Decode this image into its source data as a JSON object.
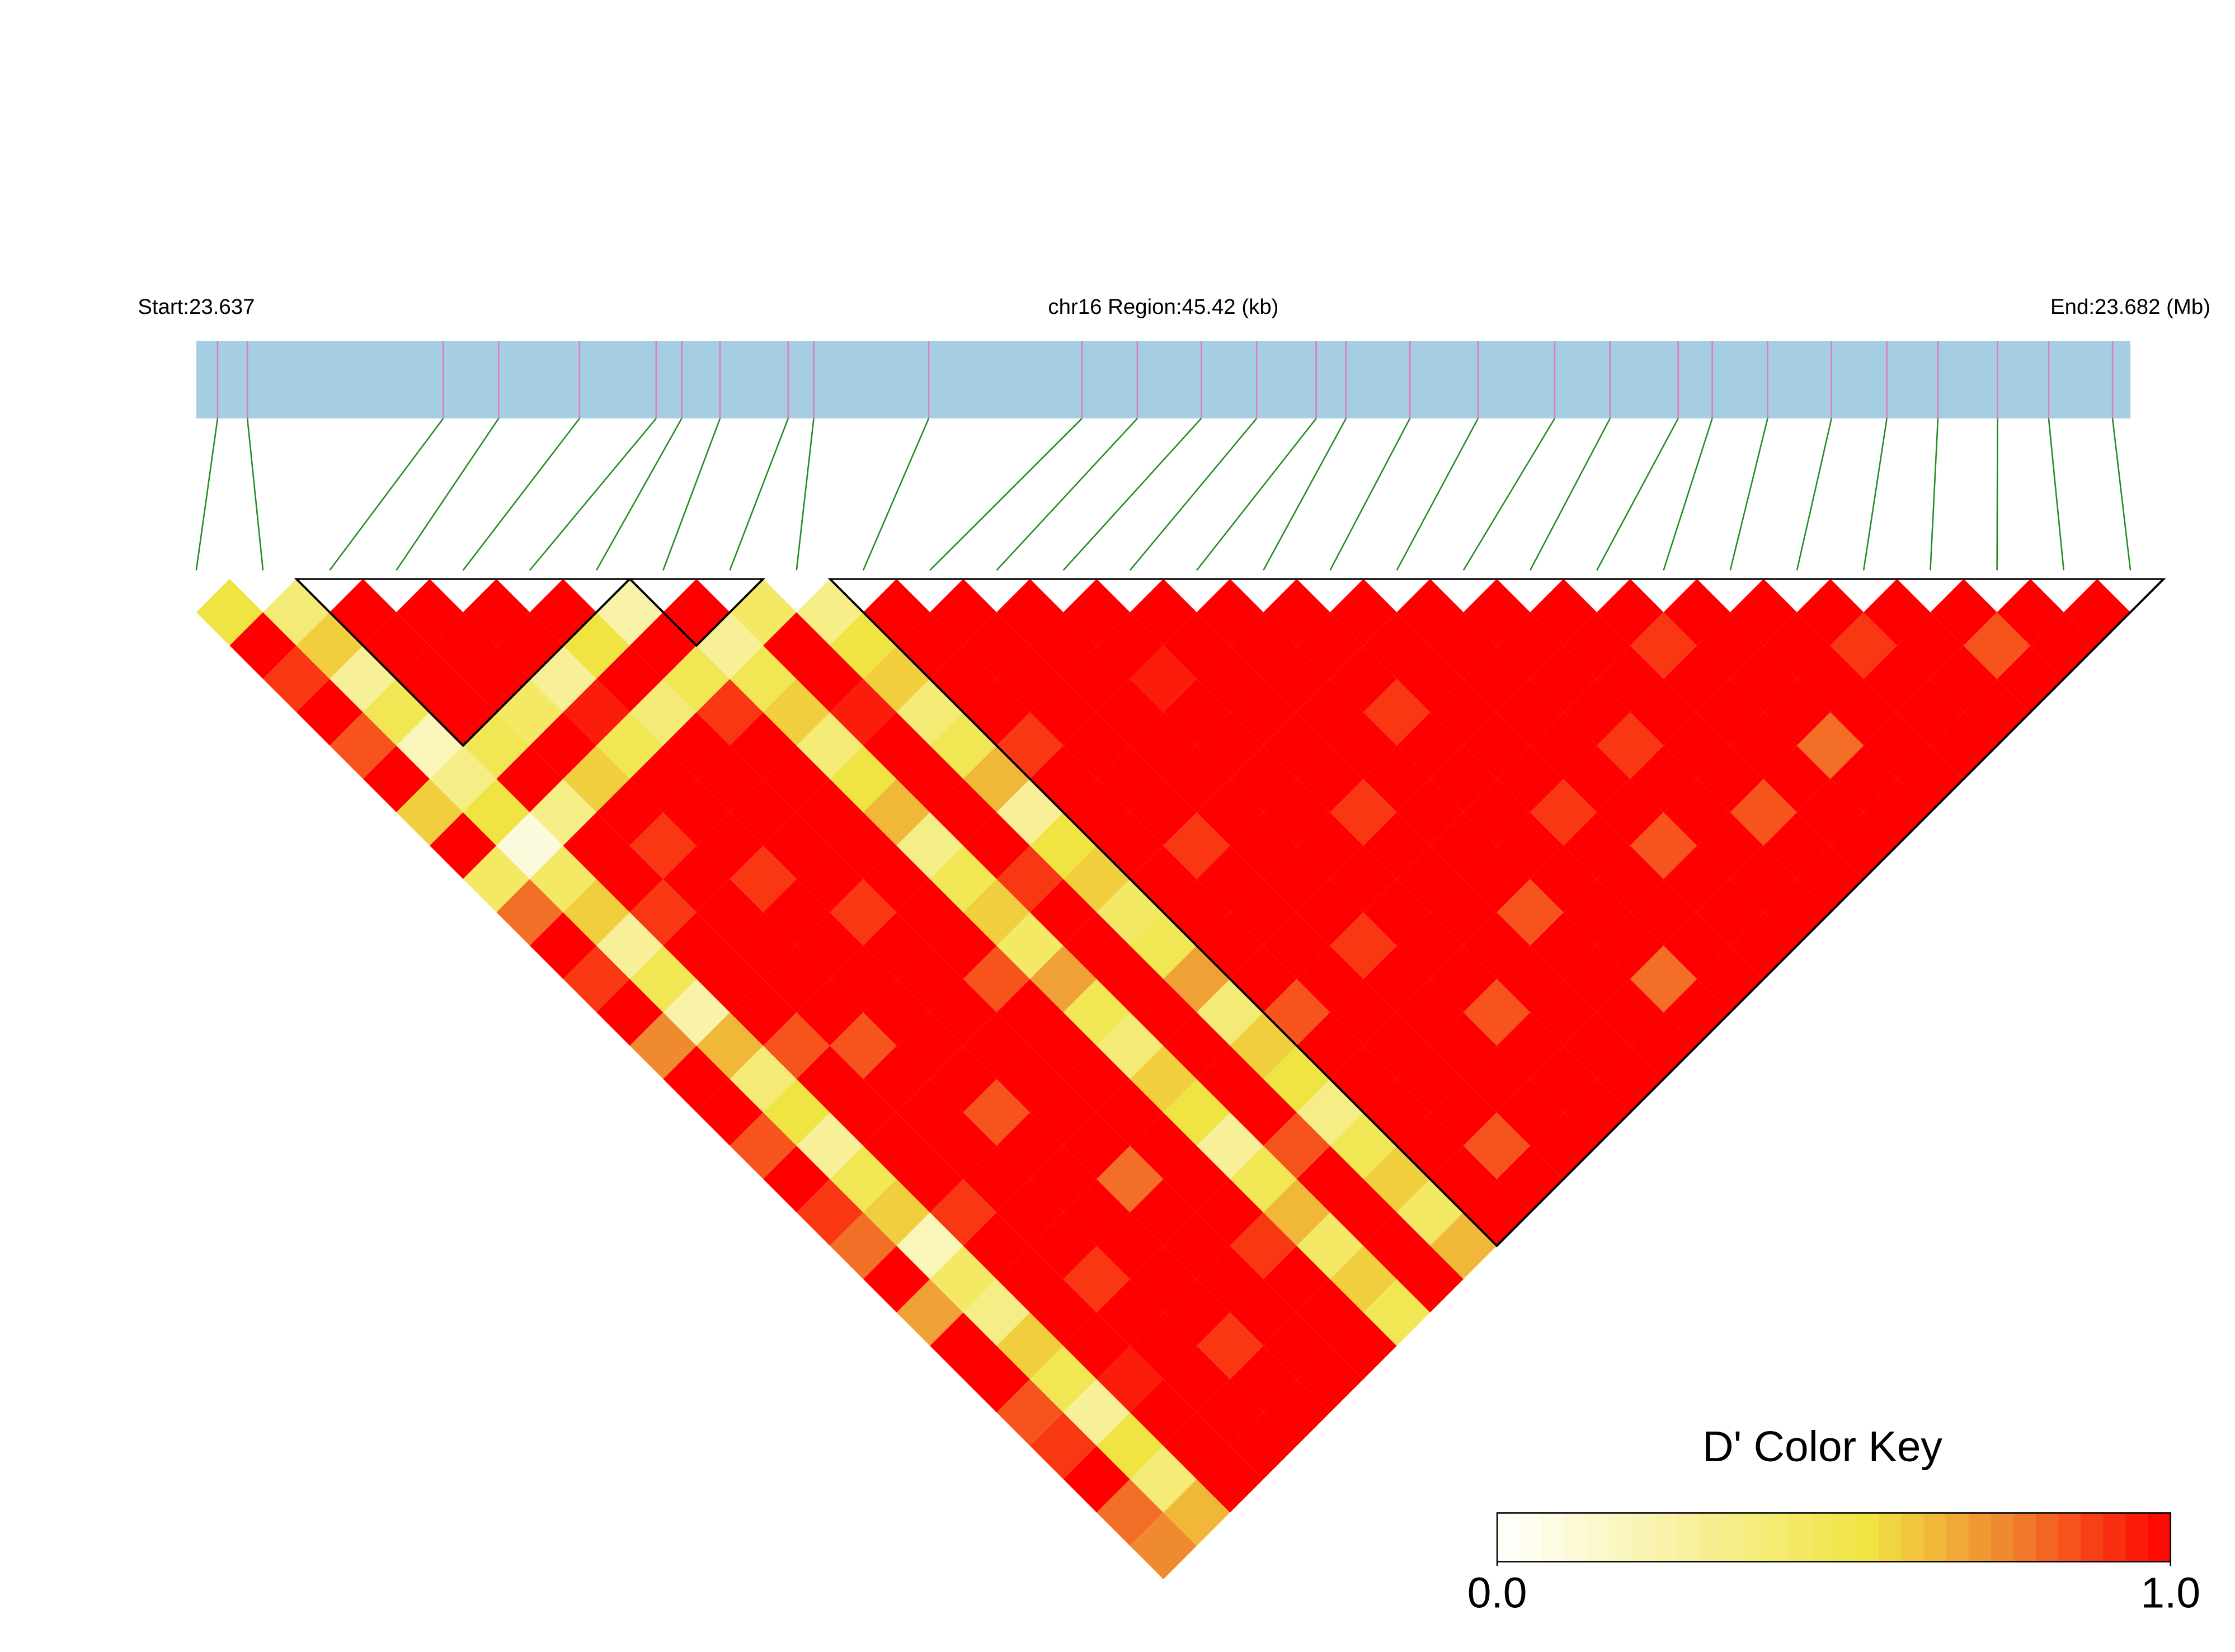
{
  "chart_data": {
    "type": "ld_heatmap",
    "start_label": "Start:23.637",
    "title": "chr16 Region:45.42 (kb)",
    "end_label": "End:23.682 (Mb)",
    "xlim": [
      0,
      45.42
    ],
    "snp_positions": [
      0.5,
      1.2,
      5.8,
      7.1,
      9.0,
      10.8,
      11.4,
      12.3,
      13.9,
      14.5,
      17.2,
      20.8,
      22.1,
      23.6,
      24.9,
      26.3,
      27.0,
      28.5,
      30.1,
      31.9,
      33.2,
      34.8,
      35.6,
      36.9,
      38.4,
      39.7,
      40.9,
      42.3,
      43.5,
      45.0
    ],
    "dprime": [
      [
        0.55,
        1,
        0.9,
        1,
        0.85,
        1,
        0.6,
        1,
        0.45,
        0.8,
        1,
        0.9,
        1,
        0.75,
        1,
        1,
        0.85,
        1,
        0.9,
        0.8,
        1,
        0.7,
        1,
        1,
        0.85,
        0.9,
        1,
        0.8,
        0.75
      ],
      [
        0.4,
        0.6,
        0.3,
        0.5,
        0.2,
        0.35,
        0.55,
        0.1,
        0.45,
        0.6,
        0.3,
        0.5,
        0.25,
        0.65,
        0.4,
        0.55,
        0.3,
        0.5,
        0.6,
        0.2,
        0.45,
        0.35,
        0.6,
        0.5,
        0.3,
        0.55,
        0.4,
        0.65
      ],
      [
        1,
        1,
        1,
        1,
        0.5,
        1,
        0.35,
        1,
        1,
        0.9,
        1,
        1,
        1,
        0.85,
        1,
        1,
        1,
        1,
        0.9,
        1,
        1,
        1,
        1,
        0.95,
        1,
        1,
        1
      ],
      [
        1,
        1,
        1,
        0.45,
        1,
        0.6,
        1,
        0.9,
        1,
        1,
        1,
        1,
        1,
        0.85,
        1,
        1,
        1,
        1,
        1,
        1,
        0.9,
        1,
        1,
        1,
        1,
        1
      ],
      [
        1,
        1,
        0.3,
        0.95,
        0.5,
        1,
        1,
        1,
        0.9,
        1,
        1,
        1,
        1,
        1,
        1,
        0.85,
        1,
        1,
        1,
        1,
        1,
        1,
        0.9,
        1,
        1
      ],
      [
        1,
        0.55,
        1,
        0.4,
        1,
        1,
        1,
        1,
        1,
        0.9,
        1,
        1,
        1,
        1,
        1,
        1,
        1,
        0.8,
        1,
        1,
        1,
        1,
        1,
        1
      ],
      [
        0.25,
        1,
        0.5,
        0.9,
        1,
        1,
        1,
        1,
        1,
        1,
        1,
        0.85,
        1,
        1,
        1,
        1,
        1,
        1,
        1,
        0.9,
        1,
        1,
        1
      ],
      [
        1,
        0.3,
        0.5,
        0.6,
        0.4,
        0.55,
        0.65,
        0.35,
        0.5,
        0.6,
        0.45,
        0.7,
        0.5,
        0.4,
        0.6,
        0.55,
        0.3,
        0.5,
        0.65,
        0.45,
        0.6,
        0.5
      ],
      [
        0.45,
        1,
        1,
        0.95,
        1,
        1,
        1,
        1,
        0.9,
        1,
        1,
        1,
        1,
        1,
        1,
        1,
        0.85,
        1,
        1,
        1,
        1
      ],
      [
        0.35,
        0.55,
        0.6,
        0.4,
        0.5,
        0.65,
        0.3,
        0.55,
        0.6,
        0.45,
        0.5,
        0.7,
        0.4,
        0.6,
        0.55,
        0.35,
        0.5,
        0.6,
        0.45,
        0.65
      ],
      [
        1,
        1,
        1,
        1,
        0.9,
        1,
        1,
        1,
        1,
        1,
        1,
        1,
        0.85,
        1,
        1,
        1,
        1,
        1,
        1
      ],
      [
        1,
        1,
        1,
        1,
        1,
        1,
        1,
        0.9,
        1,
        1,
        1,
        1,
        1,
        1,
        1,
        1,
        0.85,
        1
      ],
      [
        1,
        1,
        1,
        1,
        1,
        1,
        1,
        1,
        1,
        1,
        0.9,
        1,
        1,
        1,
        1,
        1,
        1
      ],
      [
        1,
        1,
        0.95,
        1,
        1,
        1,
        1,
        1,
        1,
        1,
        1,
        1,
        0.85,
        1,
        1,
        1
      ],
      [
        1,
        1,
        1,
        1,
        1,
        1,
        0.9,
        1,
        1,
        1,
        1,
        1,
        1,
        1,
        1
      ],
      [
        1,
        1,
        1,
        1,
        1,
        1,
        1,
        1,
        1,
        0.85,
        1,
        1,
        1,
        1
      ],
      [
        1,
        1,
        1,
        0.9,
        1,
        1,
        1,
        1,
        1,
        1,
        1,
        0.8,
        1
      ],
      [
        1,
        1,
        1,
        1,
        1,
        1,
        0.9,
        1,
        1,
        1,
        1,
        1
      ],
      [
        1,
        1,
        1,
        1,
        1,
        1,
        1,
        0.85,
        1,
        1,
        1
      ],
      [
        1,
        1,
        1,
        1,
        0.9,
        1,
        1,
        1,
        1,
        1
      ],
      [
        1,
        1,
        1,
        1,
        1,
        1,
        0.85,
        1,
        1
      ],
      [
        1,
        0.9,
        1,
        1,
        1,
        1,
        1,
        1
      ],
      [
        1,
        1,
        1,
        1,
        0.8,
        1,
        1
      ],
      [
        1,
        1,
        1,
        1,
        1,
        1
      ],
      [
        1,
        0.9,
        1,
        1,
        1
      ],
      [
        1,
        1,
        1,
        1
      ],
      [
        1,
        0.85,
        1
      ],
      [
        1,
        1
      ],
      [
        1
      ]
    ],
    "blocks": [
      [
        2,
        6
      ],
      [
        7,
        8
      ],
      [
        10,
        29
      ]
    ],
    "region_color": "#a6cee3",
    "snp_tick_color": "#e377c2",
    "connector_color": "#228b22",
    "block_outline_color": "#000000",
    "color_key": {
      "title": "D' Color Key",
      "ticks": [
        {
          "value": 0,
          "label": "0.0"
        },
        {
          "value": 1,
          "label": "1.0"
        }
      ],
      "stops": [
        [
          0,
          "#ffffff"
        ],
        [
          0.55,
          "#f0e442"
        ],
        [
          0.75,
          "#f08a30"
        ],
        [
          1,
          "#ff0000"
        ]
      ]
    }
  }
}
